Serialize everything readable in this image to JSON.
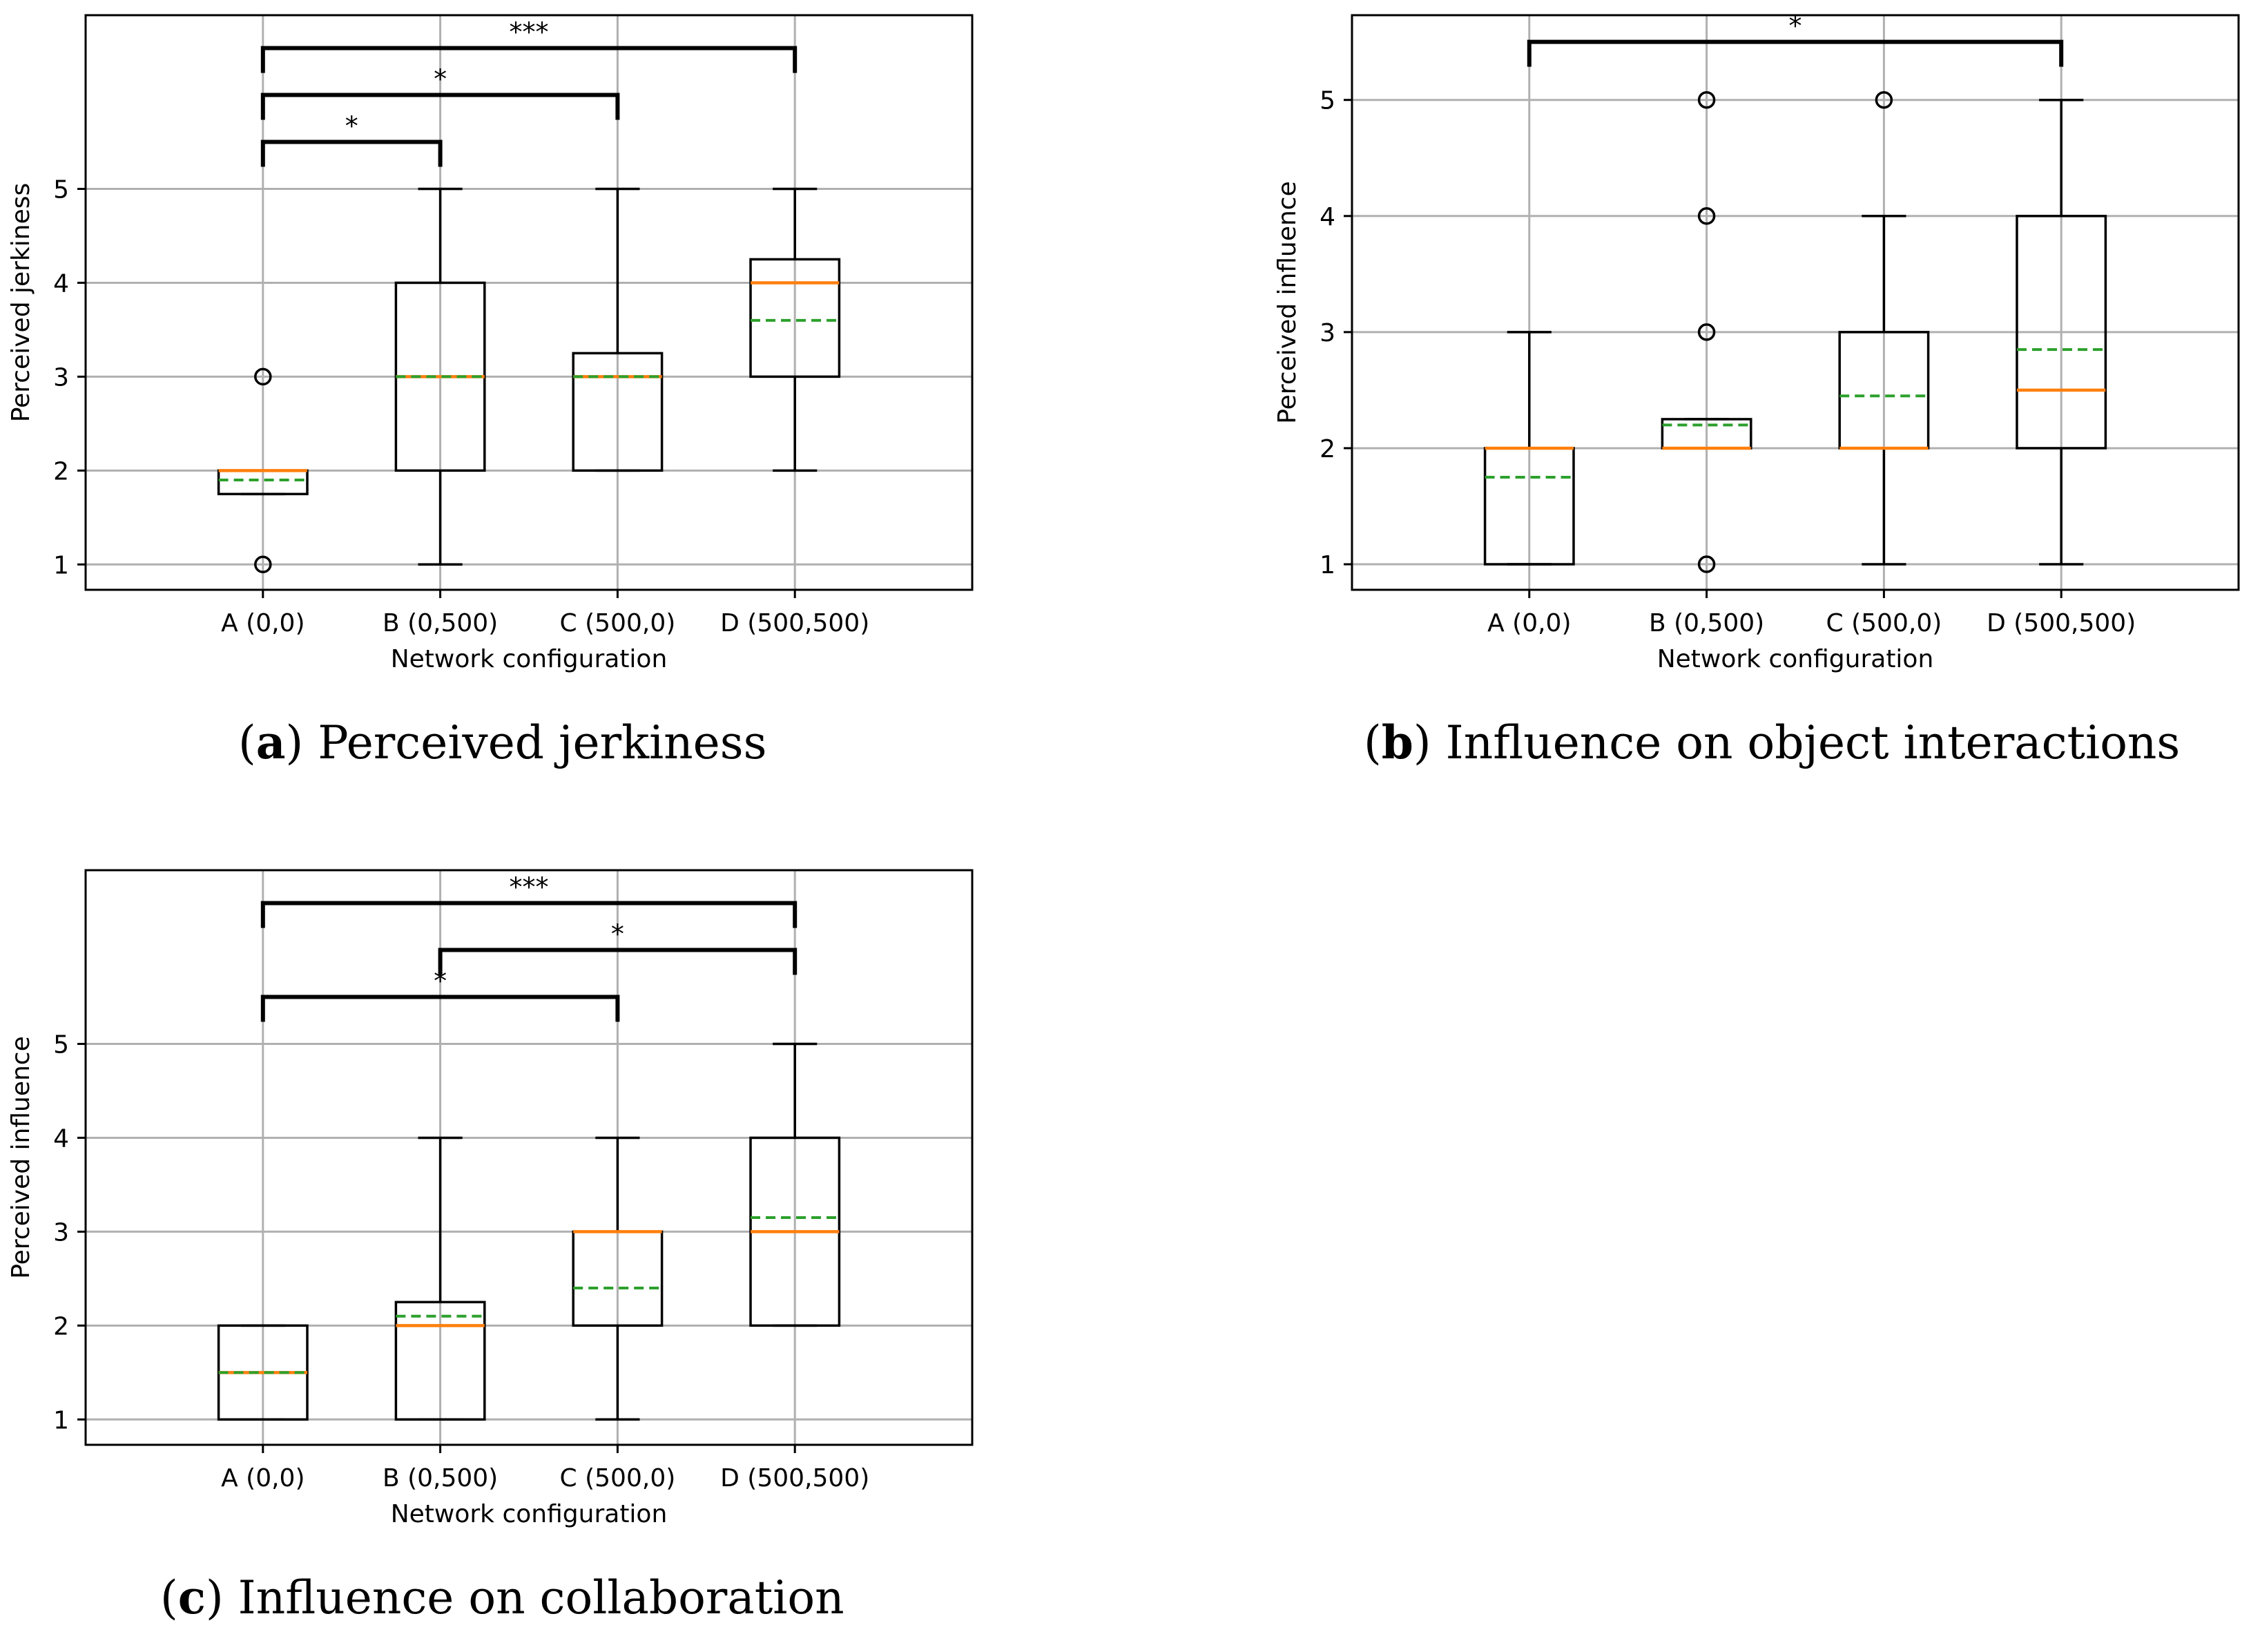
{
  "colors": {
    "box": "#000000",
    "median": "#ff7f0e",
    "mean": "#2ca02c",
    "grid": "#b0b0b0"
  },
  "chart_data": [
    {
      "type": "box",
      "caption_letter": "a",
      "caption_text": "Perceived jerkiness",
      "xlabel": "Network configuration",
      "ylabel": "Perceived jerkiness",
      "categories": [
        "A (0,0)",
        "B (0,500)",
        "C (500,0)",
        "D (500,500)"
      ],
      "yticks": [
        1,
        2,
        3,
        4,
        5
      ],
      "ylim": [
        0.73,
        6.85
      ],
      "grid": true,
      "boxes": [
        {
          "whislo": 1.75,
          "q1": 1.75,
          "med": 2,
          "q3": 2,
          "whishi": 2,
          "mean": 1.9,
          "fliers": [
            1,
            3
          ]
        },
        {
          "whislo": 1,
          "q1": 2,
          "med": 3,
          "q3": 4,
          "whishi": 5,
          "mean": 3,
          "fliers": []
        },
        {
          "whislo": 2,
          "q1": 2,
          "med": 3,
          "q3": 3.25,
          "whishi": 5,
          "mean": 3,
          "fliers": []
        },
        {
          "whislo": 2,
          "q1": 3,
          "med": 4,
          "q3": 4.25,
          "whishi": 5,
          "mean": 3.6,
          "fliers": []
        }
      ],
      "significance": [
        {
          "from": 0,
          "to": 1,
          "label": "*",
          "y": 5.5
        },
        {
          "from": 0,
          "to": 2,
          "label": "*",
          "y": 6.0
        },
        {
          "from": 0,
          "to": 3,
          "label": "***",
          "y": 6.5
        }
      ]
    },
    {
      "type": "box",
      "caption_letter": "b",
      "caption_text": "Influence on object interactions",
      "xlabel": "Network configuration",
      "ylabel": "Perceived influence",
      "categories": [
        "A (0,0)",
        "B (0,500)",
        "C (500,0)",
        "D (500,500)"
      ],
      "yticks": [
        1,
        2,
        3,
        4,
        5
      ],
      "ylim": [
        0.78,
        5.73
      ],
      "grid": true,
      "boxes": [
        {
          "whislo": 1,
          "q1": 1,
          "med": 2,
          "q3": 2,
          "whishi": 3,
          "mean": 1.75,
          "fliers": []
        },
        {
          "whislo": 2,
          "q1": 2,
          "med": 2,
          "q3": 2.25,
          "whishi": 2.25,
          "mean": 2.2,
          "fliers": [
            1,
            3,
            4,
            5
          ]
        },
        {
          "whislo": 1,
          "q1": 2,
          "med": 2,
          "q3": 3,
          "whishi": 4,
          "mean": 2.45,
          "fliers": [
            5
          ]
        },
        {
          "whislo": 1,
          "q1": 2,
          "med": 2.5,
          "q3": 4,
          "whishi": 5,
          "mean": 2.85,
          "fliers": []
        }
      ],
      "significance": [
        {
          "from": 0,
          "to": 3,
          "label": "*",
          "y": 5.5
        }
      ]
    },
    {
      "type": "box",
      "caption_letter": "c",
      "caption_text": "Influence on collaboration",
      "xlabel": "Network configuration",
      "ylabel": "Perceived influence",
      "categories": [
        "A (0,0)",
        "B (0,500)",
        "C (500,0)",
        "D (500,500)"
      ],
      "yticks": [
        1,
        2,
        3,
        4,
        5
      ],
      "ylim": [
        0.73,
        6.85
      ],
      "grid": true,
      "boxes": [
        {
          "whislo": 1,
          "q1": 1,
          "med": 1.5,
          "q3": 2,
          "whishi": 2,
          "mean": 1.5,
          "fliers": []
        },
        {
          "whislo": 1,
          "q1": 1,
          "med": 2,
          "q3": 2.25,
          "whishi": 4,
          "mean": 2.1,
          "fliers": []
        },
        {
          "whislo": 1,
          "q1": 2,
          "med": 3,
          "q3": 3,
          "whishi": 4,
          "mean": 2.4,
          "fliers": []
        },
        {
          "whislo": 2,
          "q1": 2,
          "med": 3,
          "q3": 4,
          "whishi": 5,
          "mean": 3.15,
          "fliers": []
        }
      ],
      "significance": [
        {
          "from": 0,
          "to": 2,
          "label": "*",
          "y": 5.5
        },
        {
          "from": 1,
          "to": 3,
          "label": "*",
          "y": 6.0
        },
        {
          "from": 0,
          "to": 3,
          "label": "***",
          "y": 6.5
        }
      ]
    }
  ]
}
